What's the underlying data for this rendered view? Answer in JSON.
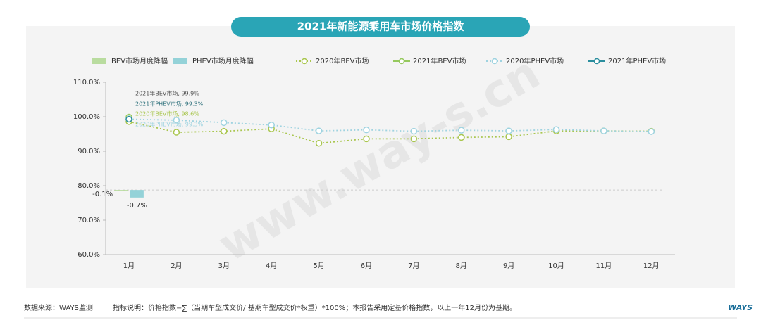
{
  "chart_data": {
    "type": "line",
    "title": "2021年新能源乘用车市场价格指数",
    "categories": [
      "1月",
      "2月",
      "3月",
      "4月",
      "5月",
      "6月",
      "7月",
      "8月",
      "9月",
      "10月",
      "11月",
      "12月"
    ],
    "ylim": [
      60,
      110
    ],
    "yticks": [
      {
        "value": 60,
        "label": "60.0%"
      },
      {
        "value": 70,
        "label": "70.0%"
      },
      {
        "value": 80,
        "label": "80.0%"
      },
      {
        "value": 90,
        "label": "90.0%"
      },
      {
        "value": 100,
        "label": "100.0%"
      },
      {
        "value": 110,
        "label": "110.0%"
      }
    ],
    "y2lim": [
      -6,
      10
    ],
    "series": [
      {
        "name": "BEV市场月度降幅",
        "type": "bar",
        "axis": "y2",
        "color": "#b9dc9f",
        "values": [
          -0.1,
          null,
          null,
          null,
          null,
          null,
          null,
          null,
          null,
          null,
          null,
          null
        ],
        "value_labels": [
          "-0.1%",
          null,
          null,
          null,
          null,
          null,
          null,
          null,
          null,
          null,
          null,
          null
        ]
      },
      {
        "name": "PHEV市场月度降幅",
        "type": "bar",
        "axis": "y2",
        "color": "#94d2d8",
        "values": [
          -0.7,
          null,
          null,
          null,
          null,
          null,
          null,
          null,
          null,
          null,
          null,
          null
        ],
        "value_labels": [
          "-0.7%",
          null,
          null,
          null,
          null,
          null,
          null,
          null,
          null,
          null,
          null,
          null
        ]
      },
      {
        "name": "2020年BEV市场",
        "type": "line",
        "style": "dotted",
        "color": "#a9c64e",
        "values": [
          98.6,
          95.5,
          95.8,
          96.5,
          92.3,
          93.6,
          93.6,
          94.0,
          94.2,
          95.9,
          95.9,
          95.8
        ],
        "value_labels": [
          "2020年BEV市场, 98.6%",
          null,
          null,
          null,
          null,
          null,
          null,
          null,
          null,
          null,
          null,
          null
        ]
      },
      {
        "name": "2021年BEV市场",
        "type": "line",
        "style": "solid",
        "color": "#96c95e",
        "values": [
          99.9,
          null,
          null,
          null,
          null,
          null,
          null,
          null,
          null,
          null,
          null,
          null
        ],
        "value_labels": [
          "2021年BEV市场, 99.9%",
          null,
          null,
          null,
          null,
          null,
          null,
          null,
          null,
          null,
          null,
          null
        ]
      },
      {
        "name": "2020年PHEV市场",
        "type": "line",
        "style": "dotted",
        "color": "#9fd3e0",
        "values": [
          99.3,
          99.0,
          98.3,
          97.6,
          95.9,
          96.2,
          95.8,
          96.1,
          95.9,
          96.3,
          95.9,
          95.7
        ],
        "value_labels": [
          "2020年PHEV市场, 99.3%",
          null,
          null,
          null,
          null,
          null,
          null,
          null,
          null,
          null,
          null,
          null
        ]
      },
      {
        "name": "2021年PHEV市场",
        "type": "line",
        "style": "solid",
        "color": "#2b8e9e",
        "values": [
          99.3,
          null,
          null,
          null,
          null,
          null,
          null,
          null,
          null,
          null,
          null,
          null
        ],
        "value_labels": [
          "2021年PHEV市场, 99.3%",
          null,
          null,
          null,
          null,
          null,
          null,
          null,
          null,
          null,
          null,
          null
        ]
      }
    ]
  },
  "watermark": "www.way-s.cn",
  "footer": {
    "source": "数据来源：WAYS监测",
    "note": "指标说明：价格指数=∑（当期车型成交价/ 基期车型成交价*权重）*100%；本报告采用定基价格指数，以上一年12月份为基期。",
    "logo": "WAYS"
  }
}
